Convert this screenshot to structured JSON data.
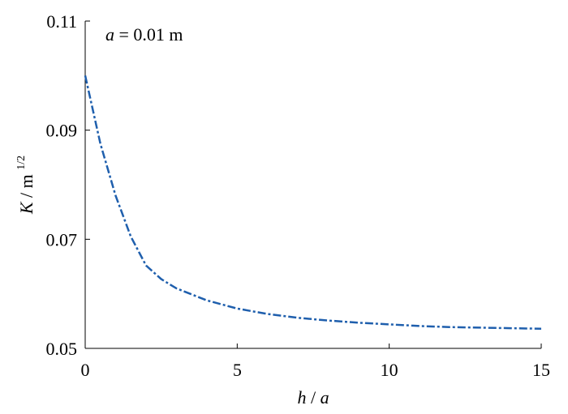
{
  "chart_data": {
    "type": "line",
    "annotation_var": "a",
    "annotation_rest": "= 0.01 m",
    "xlabel_num": "h",
    "xlabel_sep": "/",
    "xlabel_den": "a",
    "ylabel_var": "K",
    "ylabel_unit": "/ m",
    "ylabel_exponent": "1/2",
    "x": [
      0,
      0.5,
      1,
      1.5,
      2,
      2.5,
      3,
      4,
      5,
      6,
      7,
      8,
      9,
      10,
      11,
      12,
      13,
      14,
      15
    ],
    "series": [
      {
        "name": "K",
        "color": "#1f5fad",
        "values": [
          0.1,
          0.0875,
          0.078,
          0.0705,
          0.0652,
          0.0627,
          0.061,
          0.0588,
          0.0573,
          0.0563,
          0.0556,
          0.0551,
          0.0547,
          0.0544,
          0.0541,
          0.0539,
          0.0538,
          0.0537,
          0.0536
        ]
      }
    ],
    "xlim": [
      0,
      15
    ],
    "xticks": [
      0,
      5,
      10,
      15
    ],
    "ylim": [
      0.05,
      0.11
    ],
    "yticks": [
      0.05,
      0.07,
      0.09,
      0.11
    ]
  }
}
